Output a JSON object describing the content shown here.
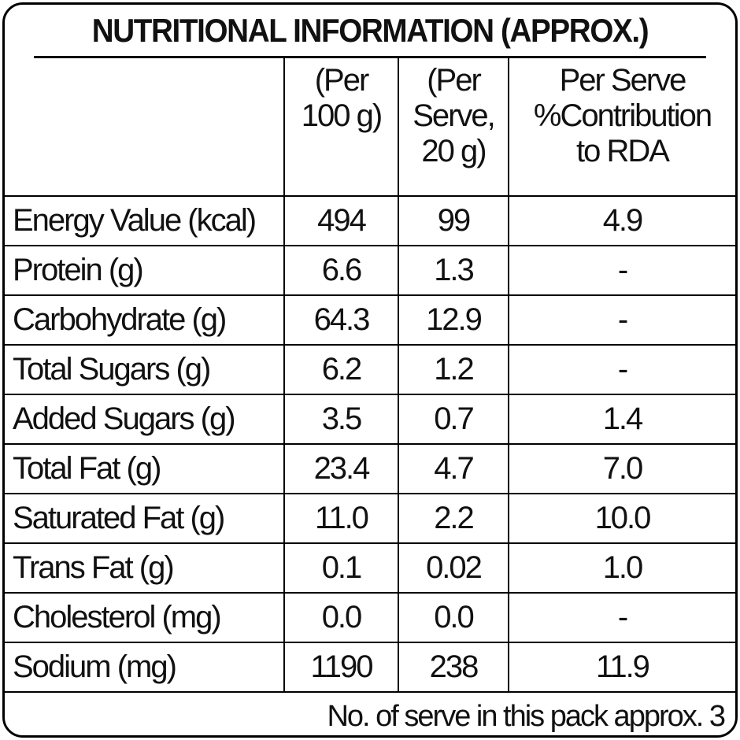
{
  "title": "NUTRITIONAL INFORMATION (APPROX.)",
  "headers": {
    "nutrient": "",
    "per_100g": [
      "(Per",
      "100 g)"
    ],
    "per_serve": [
      "(Per",
      "Serve,",
      "20 g)"
    ],
    "rda": [
      "Per Serve",
      "%Contribution",
      "to RDA"
    ]
  },
  "rows": [
    {
      "label": "Energy Value (kcal)",
      "per_100g": "494",
      "per_serve": "99",
      "rda": "4.9"
    },
    {
      "label": "Protein (g)",
      "per_100g": "6.6",
      "per_serve": "1.3",
      "rda": "-"
    },
    {
      "label": "Carbohydrate (g)",
      "per_100g": "64.3",
      "per_serve": "12.9",
      "rda": "-"
    },
    {
      "label": "Total Sugars (g)",
      "per_100g": "6.2",
      "per_serve": "1.2",
      "rda": "-"
    },
    {
      "label": "Added Sugars (g)",
      "per_100g": "3.5",
      "per_serve": "0.7",
      "rda": "1.4"
    },
    {
      "label": "Total Fat (g)",
      "per_100g": "23.4",
      "per_serve": "4.7",
      "rda": "7.0"
    },
    {
      "label": "Saturated Fat (g)",
      "per_100g": "11.0",
      "per_serve": "2.2",
      "rda": "10.0"
    },
    {
      "label": "Trans Fat (g)",
      "per_100g": "0.1",
      "per_serve": "0.02",
      "rda": "1.0"
    },
    {
      "label": "Cholesterol (mg)",
      "per_100g": "0.0",
      "per_serve": "0.0",
      "rda": "-"
    },
    {
      "label": "Sodium (mg)",
      "per_100g": "1190",
      "per_serve": "238",
      "rda": "11.9"
    }
  ],
  "footer": "No. of serve in this pack approx. 3"
}
